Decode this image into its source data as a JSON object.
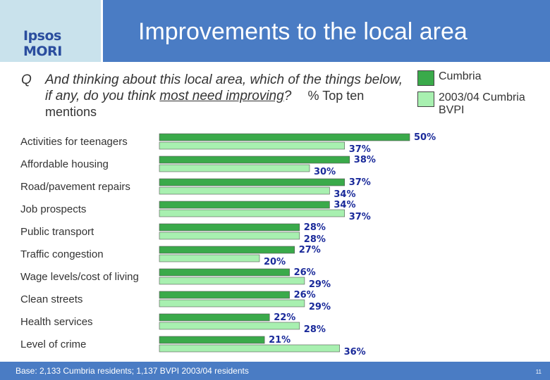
{
  "brand": {
    "logo": "Ipsos MORI"
  },
  "header": {
    "title": "Improvements to the local area"
  },
  "question": {
    "prefix": "Q",
    "text_part1": "And thinking about this local area, which of the things below, if any, do you think ",
    "text_underlined": "most need improving",
    "text_end": "?",
    "subtitle": "% Top ten mentions"
  },
  "footer": {
    "base": "Base: 2,133 Cumbria residents; 1,137 BVPI 2003/04 residents",
    "page": "11"
  },
  "colors": {
    "cumbria": "#3aaa4a",
    "bvpi": "#a8f0b0",
    "label": "#1a2a9a"
  },
  "chart_data": {
    "type": "bar",
    "orientation": "horizontal",
    "categories": [
      "Activities for teenagers",
      "Affordable housing",
      "Road/pavement repairs",
      "Job prospects",
      "Public transport",
      "Traffic congestion",
      "Wage levels/cost of living",
      "Clean streets",
      "Health services",
      "Level of crime"
    ],
    "series": [
      {
        "name": "Cumbria",
        "values": [
          50,
          38,
          37,
          34,
          28,
          27,
          26,
          26,
          22,
          21
        ]
      },
      {
        "name": "2003/04 Cumbria BVPI",
        "values": [
          37,
          30,
          34,
          37,
          28,
          20,
          29,
          29,
          28,
          36
        ]
      }
    ],
    "xlim": [
      0,
      50
    ],
    "value_suffix": "%",
    "legend_position": "top-right"
  }
}
